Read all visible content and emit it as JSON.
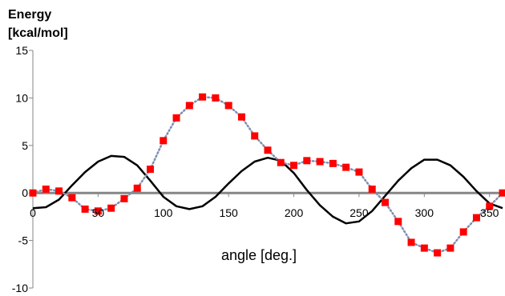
{
  "chart_data": {
    "type": "line",
    "title": "",
    "ylabel_lines": [
      "Energy",
      "[kcal/mol]"
    ],
    "xlabel": "angle [deg.]",
    "xlim": [
      0,
      360
    ],
    "ylim": [
      -10,
      15
    ],
    "xticks": [
      0,
      50,
      100,
      150,
      200,
      250,
      300,
      350
    ],
    "yticks": [
      -10,
      -5,
      0,
      5,
      10,
      15
    ],
    "grid": false,
    "legend": "none",
    "series": [
      {
        "style": "line",
        "color": "#000000",
        "x": [
          0,
          10,
          20,
          30,
          40,
          50,
          60,
          70,
          80,
          90,
          100,
          110,
          120,
          130,
          140,
          150,
          160,
          170,
          180,
          190,
          200,
          210,
          220,
          230,
          240,
          250,
          260,
          270,
          280,
          290,
          300,
          310,
          320,
          330,
          340,
          350,
          360
        ],
        "y": [
          -1.6,
          -1.5,
          -0.7,
          0.8,
          2.2,
          3.3,
          3.9,
          3.8,
          2.9,
          1.3,
          -0.4,
          -1.4,
          -1.7,
          -1.4,
          -0.4,
          1.0,
          2.3,
          3.3,
          3.7,
          3.4,
          2.1,
          0.3,
          -1.3,
          -2.5,
          -3.2,
          -3.0,
          -1.9,
          -0.3,
          1.3,
          2.6,
          3.5,
          3.5,
          2.9,
          1.7,
          0.2,
          -1.1,
          -1.6
        ]
      },
      {
        "style": "dotted-markers",
        "color": "#ff0000",
        "line_color": "#7f8fb0",
        "x": [
          0,
          10,
          20,
          30,
          40,
          50,
          60,
          70,
          80,
          90,
          100,
          110,
          120,
          130,
          140,
          150,
          160,
          170,
          180,
          190,
          200,
          210,
          220,
          230,
          240,
          250,
          260,
          270,
          280,
          290,
          300,
          310,
          320,
          330,
          340,
          350,
          360
        ],
        "y": [
          0.0,
          0.4,
          0.2,
          -0.5,
          -1.7,
          -1.9,
          -1.6,
          -0.6,
          0.5,
          2.5,
          5.5,
          7.9,
          9.2,
          10.1,
          10.0,
          9.2,
          8.0,
          6.0,
          4.5,
          3.2,
          2.9,
          3.4,
          3.3,
          3.1,
          2.7,
          2.2,
          0.4,
          -1.0,
          -3.0,
          -5.2,
          -5.8,
          -6.3,
          -5.8,
          -4.1,
          -2.6,
          -1.4,
          0.0
        ]
      }
    ]
  }
}
